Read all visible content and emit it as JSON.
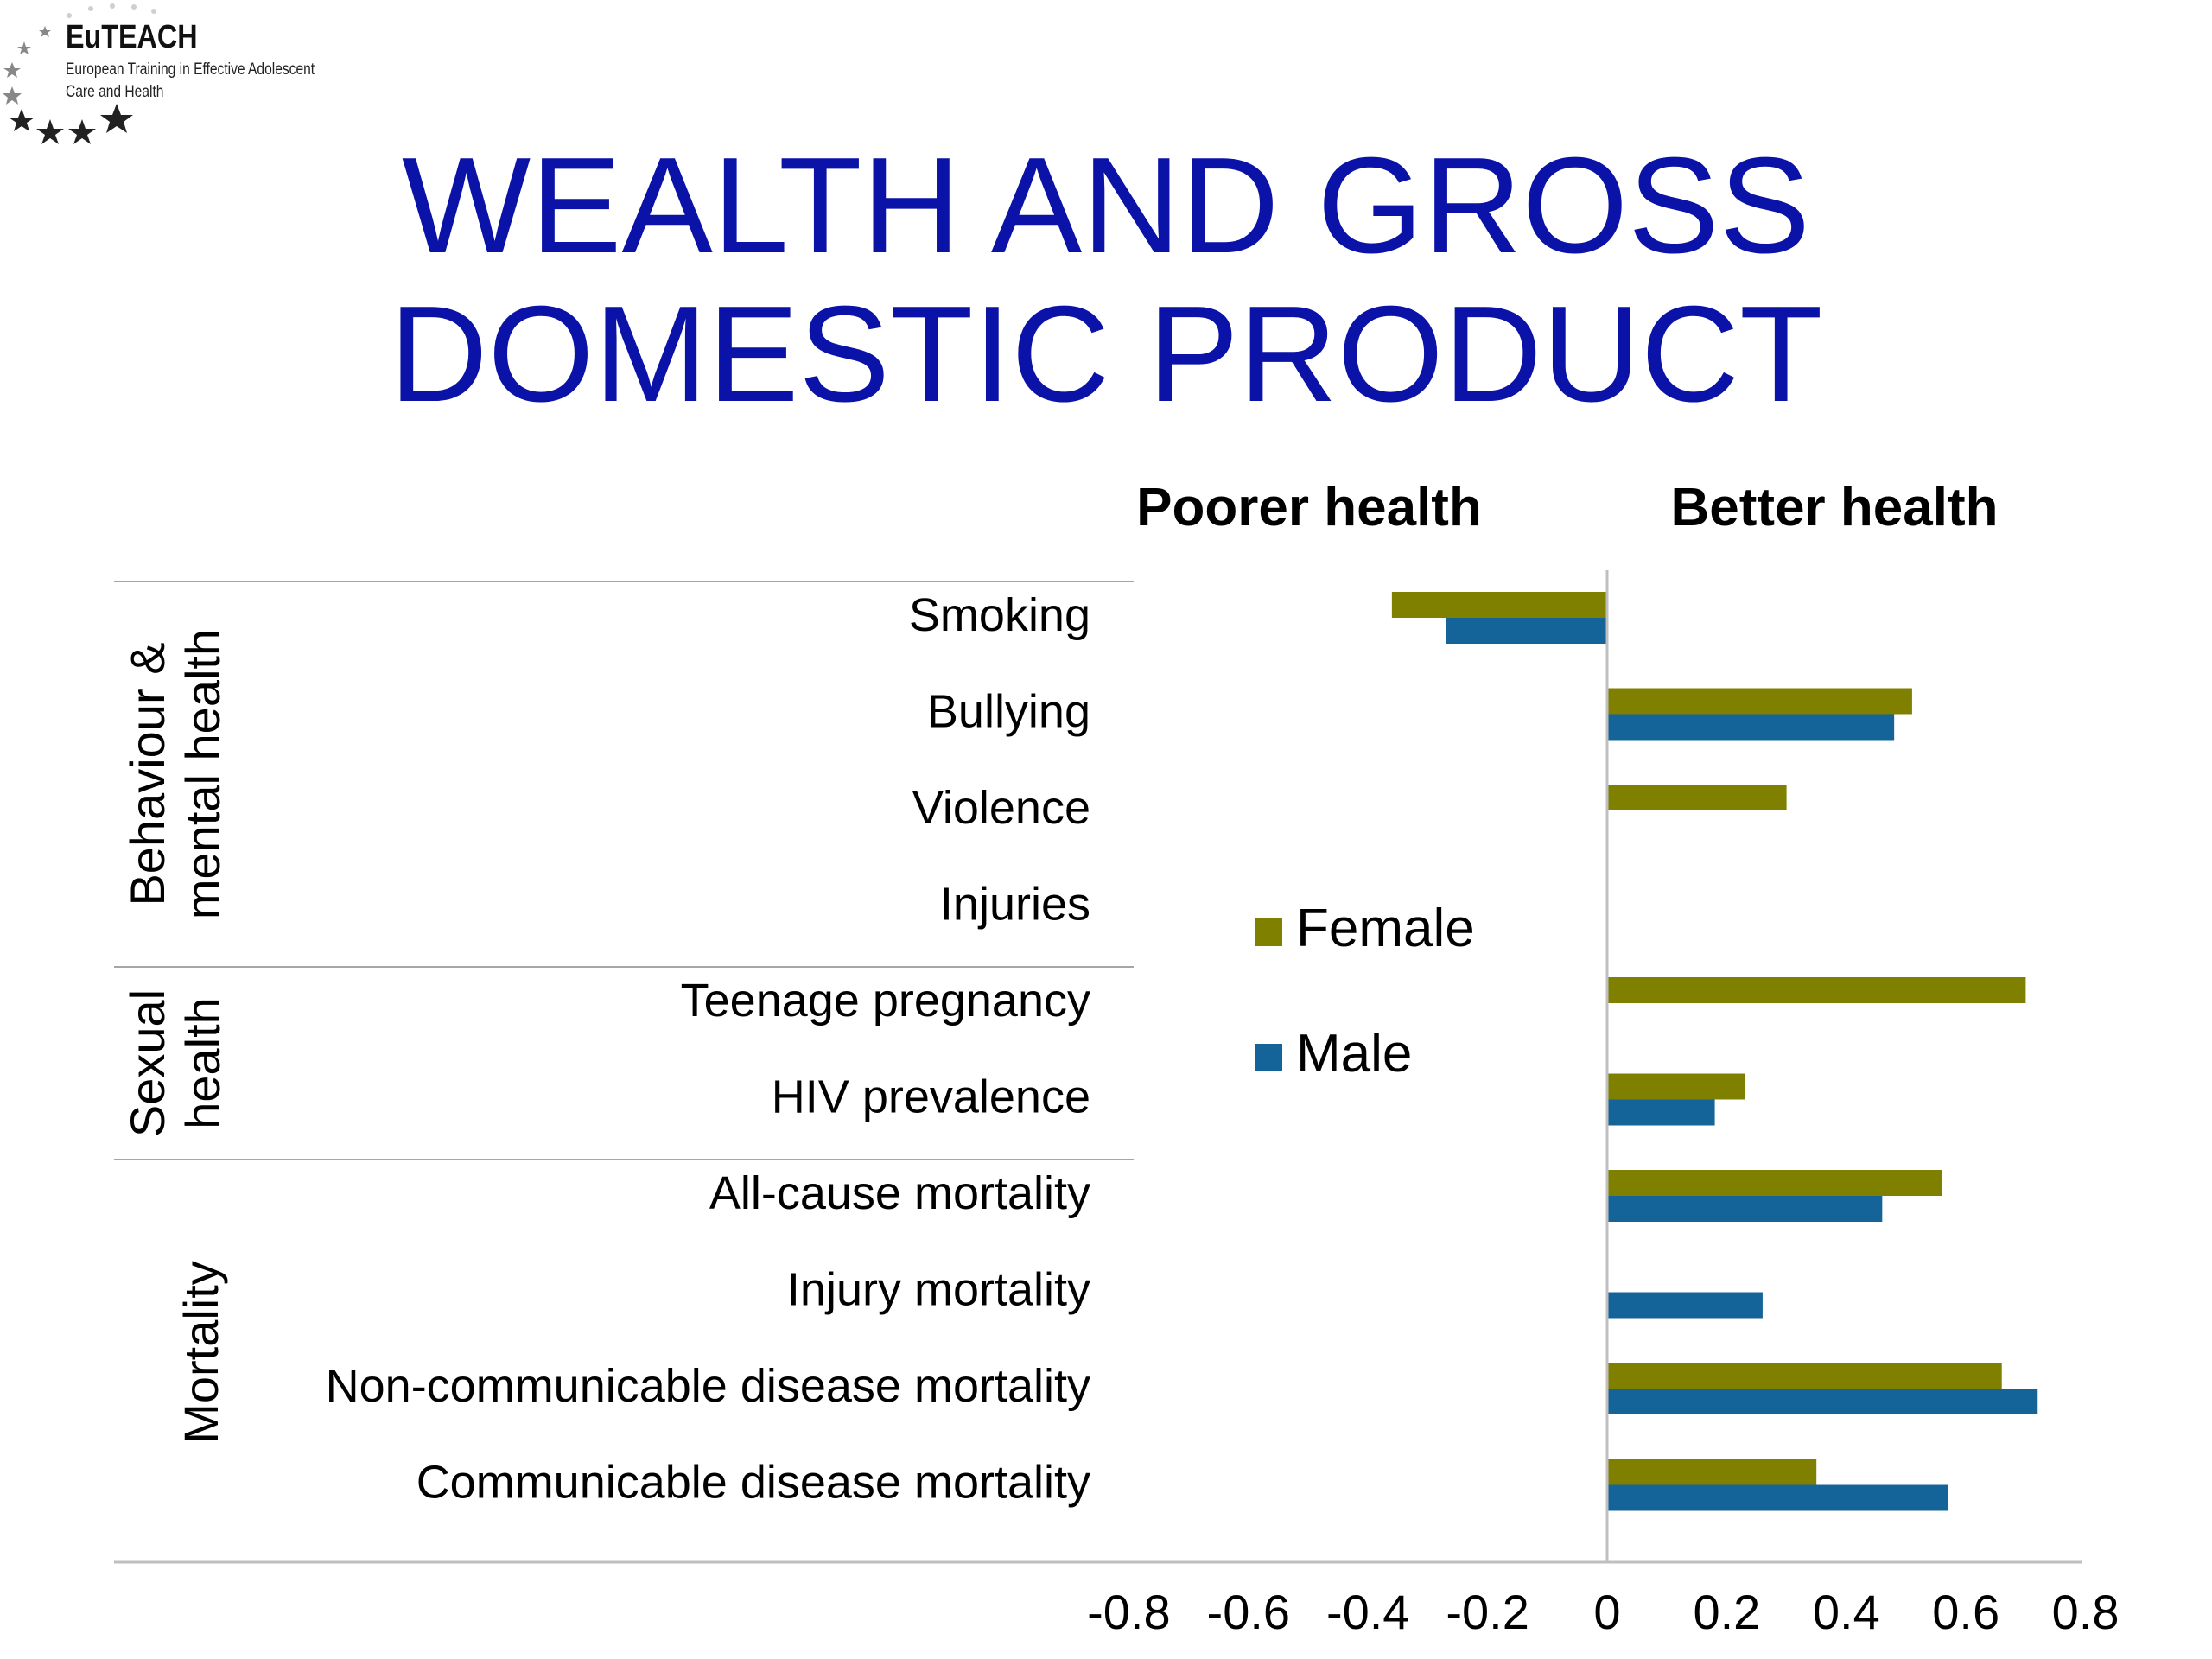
{
  "logo": {
    "name": "EuTEACH",
    "line1": "European Training in Effective Adolescent",
    "line2": "Care and Health"
  },
  "slide": {
    "title_line1": "WEALTH AND GROSS",
    "title_line2": "DOMESTIC PRODUCT"
  },
  "colors": {
    "female": "#808000",
    "male": "#14649a",
    "title": "#0a12a8",
    "axis": "#bfbfbf"
  },
  "chart_data": {
    "type": "bar",
    "orientation": "horizontal",
    "direction_labels": {
      "left": "Poorer health",
      "right": "Better health"
    },
    "categories": [
      "Smoking",
      "Bullying",
      "Violence",
      "Injuries",
      "Teenage pregnancy",
      "HIV prevalence",
      "All-cause mortality",
      "Injury mortality",
      "Non-communicable disease mortality",
      "Communicable disease mortality"
    ],
    "groups": [
      {
        "label_lines": [
          "Behaviour &",
          "mental health"
        ],
        "start": 0,
        "end": 3
      },
      {
        "label_lines": [
          "Sexual",
          "health"
        ],
        "start": 4,
        "end": 5
      },
      {
        "label_lines": [
          "Mortality"
        ],
        "start": 6,
        "end": 9
      }
    ],
    "series": [
      {
        "name": "Female",
        "values": [
          -0.36,
          0.51,
          0.3,
          null,
          0.7,
          0.23,
          0.56,
          null,
          0.66,
          0.35
        ]
      },
      {
        "name": "Male",
        "values": [
          -0.27,
          0.48,
          null,
          null,
          null,
          0.18,
          0.46,
          0.26,
          0.72,
          0.57
        ]
      }
    ],
    "xlim": [
      -0.8,
      0.8
    ],
    "xticks": [
      "-0.8",
      "-0.6",
      "-0.4",
      "-0.2",
      "0",
      "0.2",
      "0.4",
      "0.6",
      "0.8"
    ],
    "legend_position": "center-left"
  }
}
